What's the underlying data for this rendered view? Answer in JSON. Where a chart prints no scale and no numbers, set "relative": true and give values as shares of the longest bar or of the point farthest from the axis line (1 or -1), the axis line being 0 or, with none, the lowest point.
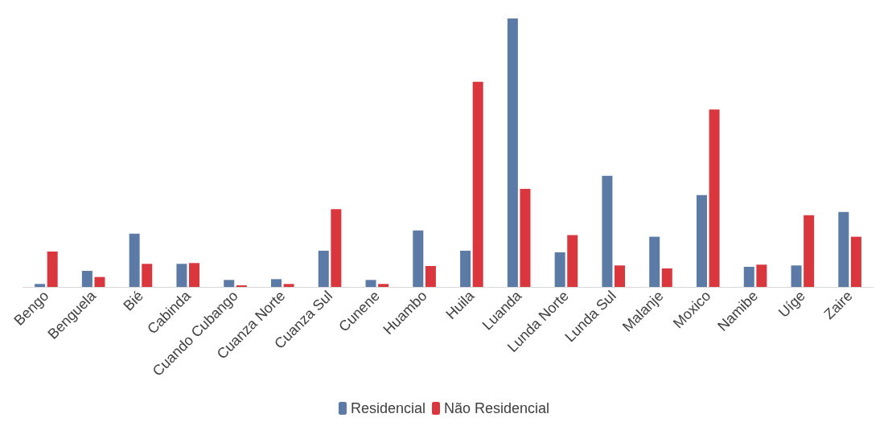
{
  "chart_data": {
    "type": "bar",
    "relative": true,
    "legend": "bottom",
    "grid": false,
    "categories": [
      "Bengo",
      "Benguela",
      "Bié",
      "Cabinda",
      "Cuando Cubango",
      "Cuanza Norte",
      "Cuanza Sul",
      "Cunene",
      "Huambo",
      "Huila",
      "Luanda",
      "Lunda Norte",
      "Lunda Sul",
      "Malanje",
      "Moxico",
      "Namibe",
      "Uíge",
      "Zaire"
    ],
    "series": [
      {
        "name": "Residencial",
        "color": "#5b7aa6",
        "values": [
          0.011,
          0.06,
          0.198,
          0.086,
          0.026,
          0.029,
          0.135,
          0.026,
          0.21,
          0.135,
          1,
          0.129,
          0.414,
          0.187,
          0.342,
          0.075,
          0.08,
          0.279
        ]
      },
      {
        "name": "Não Residencial",
        "color": "#d9363e",
        "values": [
          0.132,
          0.037,
          0.086,
          0.089,
          0.006,
          0.011,
          0.29,
          0.011,
          0.078,
          0.764,
          0.365,
          0.193,
          0.08,
          0.069,
          0.661,
          0.083,
          0.267,
          0.187
        ]
      }
    ]
  }
}
